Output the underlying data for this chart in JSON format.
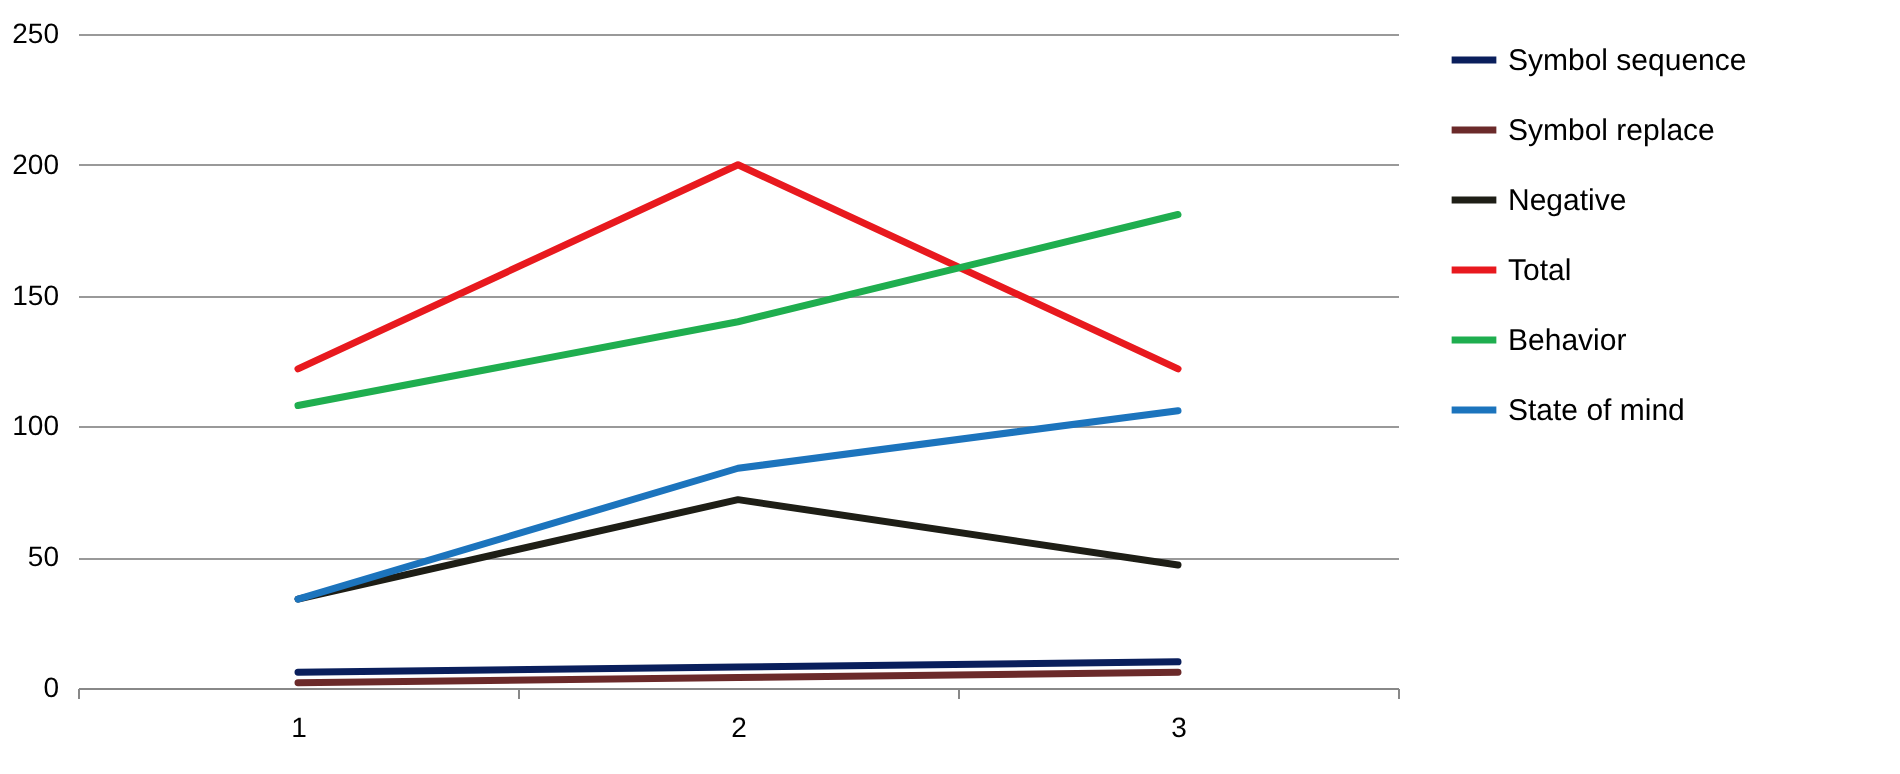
{
  "chart_data": {
    "type": "line",
    "categories": [
      "1",
      "2",
      "3"
    ],
    "series": [
      {
        "name": "Symbol sequence",
        "color": "#0a1f5c",
        "values": [
          6,
          8,
          10
        ]
      },
      {
        "name": "Symbol replace",
        "color": "#6b2a2a",
        "values": [
          2,
          4,
          6
        ]
      },
      {
        "name": "Negative",
        "color": "#1e1e16",
        "values": [
          34,
          72,
          47
        ]
      },
      {
        "name": "Total",
        "color": "#e8191e",
        "values": [
          122,
          200,
          122
        ]
      },
      {
        "name": "Behavior",
        "color": "#1fae4f",
        "values": [
          108,
          140,
          181
        ]
      },
      {
        "name": "State of mind",
        "color": "#1c74bd",
        "values": [
          34,
          84,
          106
        ]
      }
    ],
    "ylim": [
      0,
      250
    ],
    "yticks": [
      0,
      50,
      100,
      150,
      200,
      250
    ],
    "grid": "y",
    "legend": "right",
    "line_style": "solid",
    "marker": "none"
  }
}
